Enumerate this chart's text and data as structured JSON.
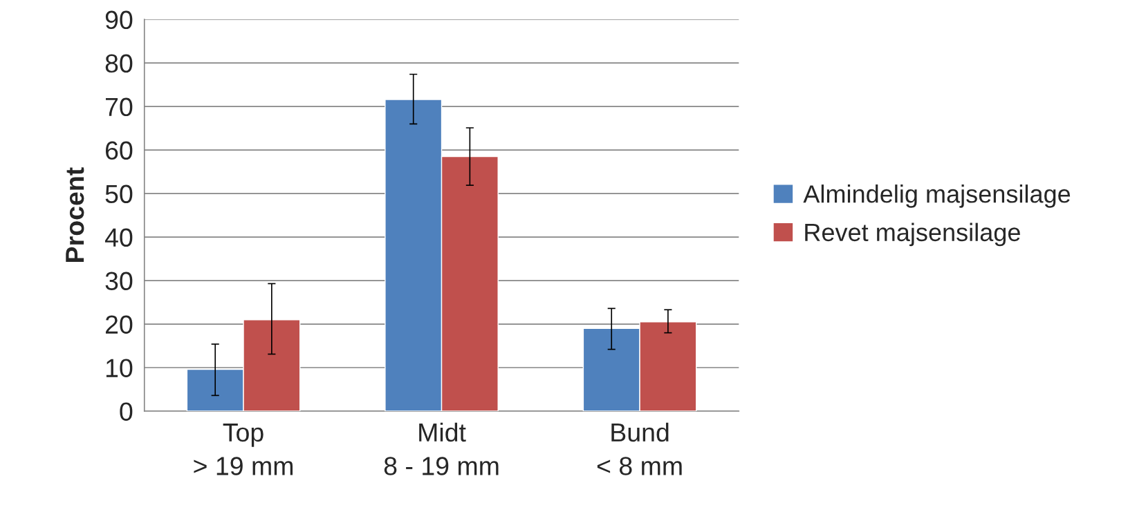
{
  "chart_data": {
    "type": "bar",
    "ylabel": "Procent",
    "categories": [
      "Top\n> 19 mm",
      "Midt\n8 - 19 mm",
      "Bund\n< 8 mm"
    ],
    "series": [
      {
        "name": "Almindelig majsensilage",
        "color": "#4f81bd",
        "values": [
          9.6,
          71.6,
          19.0
        ],
        "errors": [
          [
            3.6,
            15.4
          ],
          [
            66.0,
            77.4
          ],
          [
            14.2,
            23.6
          ]
        ]
      },
      {
        "name": "Revet majsensilage",
        "color": "#c0504d",
        "values": [
          21.0,
          58.5,
          20.5
        ],
        "errors": [
          [
            13.1,
            29.3
          ],
          [
            51.9,
            65.1
          ],
          [
            18.0,
            23.3
          ]
        ]
      }
    ],
    "ylim": [
      0,
      90
    ],
    "yticks": [
      0,
      10,
      20,
      30,
      40,
      50,
      60,
      70,
      80,
      90
    ],
    "grid": "y",
    "legend": "right"
  }
}
